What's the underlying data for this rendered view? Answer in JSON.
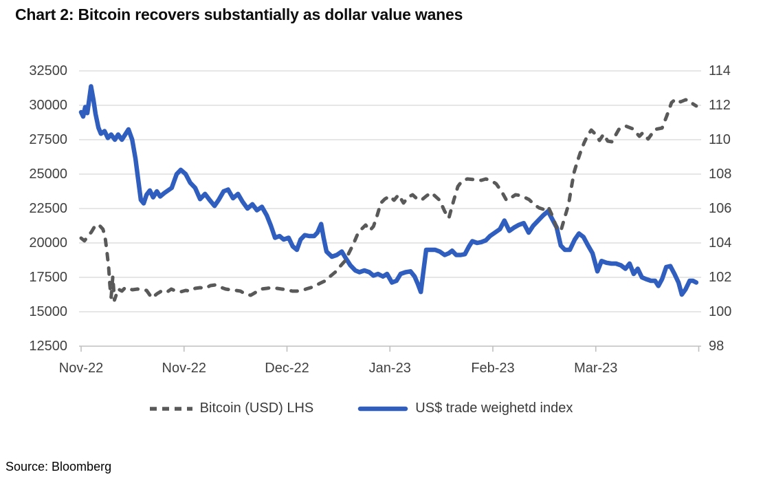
{
  "title": "Chart 2: Bitcoin recovers substantially as dollar value wanes",
  "source": "Source: Bloomberg",
  "colors": {
    "bitcoin_line": "#595959",
    "usd_index_line": "#2F5EBF",
    "gridline": "#D6D6D6",
    "axis_line": "#BFBFBF",
    "tick_label": "#404040",
    "background": "#FFFFFF"
  },
  "chart_data": {
    "type": "line",
    "title": "Chart 2: Bitcoin recovers substantially as dollar value wanes",
    "grid": "horizontal",
    "legend_position": "bottom-center",
    "x_axis": {
      "start_date": "2022-11-01",
      "unit": "days since start date",
      "tick_days": [
        0,
        25,
        50,
        75,
        100,
        125,
        150
      ],
      "tick_labels": [
        "Nov-22",
        "Nov-22",
        "Dec-22",
        "Jan-23",
        "Feb-23",
        "Mar-23",
        ""
      ]
    },
    "left_axis": {
      "series": "Bitcoin (USD) LHS",
      "min": 12500,
      "max": 32500,
      "step": 2500,
      "ticks": [
        32500,
        30000,
        27500,
        25000,
        22500,
        20000,
        17500,
        15000,
        12500
      ]
    },
    "right_axis": {
      "series": "US$ trade weighetd index",
      "min": 98,
      "max": 114,
      "step": 2,
      "ticks": [
        114,
        112,
        110,
        108,
        106,
        104,
        102,
        100,
        98
      ]
    },
    "series": [
      {
        "name": "US$ trade weighetd index",
        "axis": "right",
        "style": "solid",
        "color": "#2F5EBF",
        "points": [
          [
            0,
            111.6
          ],
          [
            0.5,
            111.35
          ],
          [
            1,
            111.9
          ],
          [
            1.5,
            111.55
          ],
          [
            2,
            112.4
          ],
          [
            2.4,
            113.1
          ],
          [
            3,
            112.3
          ],
          [
            3.5,
            111.5
          ],
          [
            4.2,
            110.7
          ],
          [
            4.8,
            110.35
          ],
          [
            5.7,
            110.5
          ],
          [
            6.5,
            110.1
          ],
          [
            7.3,
            110.3
          ],
          [
            8.2,
            110.0
          ],
          [
            9,
            110.3
          ],
          [
            9.9,
            110.0
          ],
          [
            10.7,
            110.3
          ],
          [
            11.5,
            110.6
          ],
          [
            12.4,
            110.0
          ],
          [
            13.2,
            108.9
          ],
          [
            13.9,
            107.6
          ],
          [
            14.5,
            106.5
          ],
          [
            15.2,
            106.3
          ],
          [
            15.9,
            106.8
          ],
          [
            16.7,
            107.05
          ],
          [
            17.5,
            106.65
          ],
          [
            18.4,
            107.0
          ],
          [
            19.2,
            106.7
          ],
          [
            20.2,
            106.9
          ],
          [
            22,
            107.2
          ],
          [
            23.2,
            108.0
          ],
          [
            24.2,
            108.25
          ],
          [
            25.4,
            108.0
          ],
          [
            26.5,
            107.5
          ],
          [
            27.7,
            107.2
          ],
          [
            28.9,
            106.55
          ],
          [
            30.1,
            106.85
          ],
          [
            31.2,
            106.5
          ],
          [
            32.4,
            106.15
          ],
          [
            33.4,
            106.5
          ],
          [
            34.6,
            107.0
          ],
          [
            35.7,
            107.1
          ],
          [
            36.9,
            106.6
          ],
          [
            38.1,
            106.85
          ],
          [
            39.2,
            106.4
          ],
          [
            40.4,
            106.0
          ],
          [
            41.6,
            106.25
          ],
          [
            42.7,
            105.9
          ],
          [
            43.9,
            106.1
          ],
          [
            45.1,
            105.6
          ],
          [
            46.1,
            105.0
          ],
          [
            47.1,
            104.3
          ],
          [
            48.2,
            104.4
          ],
          [
            49.2,
            104.2
          ],
          [
            50.4,
            104.3
          ],
          [
            51.4,
            103.8
          ],
          [
            52.4,
            103.6
          ],
          [
            53.3,
            104.2
          ],
          [
            54.3,
            104.45
          ],
          [
            55.4,
            104.4
          ],
          [
            56.6,
            104.4
          ],
          [
            57.4,
            104.6
          ],
          [
            58.3,
            105.1
          ],
          [
            58.9,
            104.3
          ],
          [
            59.6,
            103.5
          ],
          [
            60.9,
            103.2
          ],
          [
            62.1,
            103.3
          ],
          [
            63.3,
            103.5
          ],
          [
            64.3,
            103.1
          ],
          [
            65.4,
            102.7
          ],
          [
            66.6,
            102.4
          ],
          [
            67.6,
            102.3
          ],
          [
            68.8,
            102.4
          ],
          [
            70,
            102.3
          ],
          [
            71,
            102.1
          ],
          [
            72.1,
            102.2
          ],
          [
            73.3,
            102.05
          ],
          [
            74.3,
            102.2
          ],
          [
            75.5,
            101.7
          ],
          [
            76.6,
            101.8
          ],
          [
            77.6,
            102.2
          ],
          [
            78.8,
            102.3
          ],
          [
            80,
            102.35
          ],
          [
            81,
            102.05
          ],
          [
            81.8,
            101.6
          ],
          [
            82.5,
            101.15
          ],
          [
            83.1,
            102.3
          ],
          [
            83.8,
            103.6
          ],
          [
            85,
            103.6
          ],
          [
            86,
            103.6
          ],
          [
            87.1,
            103.5
          ],
          [
            88.3,
            103.3
          ],
          [
            89.3,
            103.4
          ],
          [
            90.1,
            103.55
          ],
          [
            91.1,
            103.3
          ],
          [
            92.2,
            103.3
          ],
          [
            93.2,
            103.35
          ],
          [
            94.2,
            103.8
          ],
          [
            95,
            104.1
          ],
          [
            96.2,
            104.0
          ],
          [
            97.2,
            104.05
          ],
          [
            98.3,
            104.15
          ],
          [
            99.3,
            104.4
          ],
          [
            100.5,
            104.6
          ],
          [
            101.7,
            104.8
          ],
          [
            102.8,
            105.3
          ],
          [
            104,
            104.7
          ],
          [
            105.2,
            104.9
          ],
          [
            106.3,
            105.05
          ],
          [
            107.5,
            105.15
          ],
          [
            108.7,
            104.6
          ],
          [
            109.8,
            105.0
          ],
          [
            111,
            105.3
          ],
          [
            112.2,
            105.6
          ],
          [
            113.4,
            105.85
          ],
          [
            114.5,
            105.35
          ],
          [
            115.5,
            104.9
          ],
          [
            116.5,
            103.85
          ],
          [
            117.5,
            103.6
          ],
          [
            118.7,
            103.6
          ],
          [
            119.9,
            104.2
          ],
          [
            120.9,
            104.55
          ],
          [
            122,
            104.35
          ],
          [
            123,
            103.9
          ],
          [
            124.2,
            103.4
          ],
          [
            125.4,
            102.35
          ],
          [
            126.4,
            102.95
          ],
          [
            127.6,
            102.85
          ],
          [
            128.8,
            102.8
          ],
          [
            129.9,
            102.8
          ],
          [
            131.1,
            102.7
          ],
          [
            132.2,
            102.5
          ],
          [
            133.2,
            102.8
          ],
          [
            134.2,
            102.2
          ],
          [
            135.2,
            102.5
          ],
          [
            136.2,
            102.0
          ],
          [
            137.2,
            101.9
          ],
          [
            138.4,
            101.8
          ],
          [
            139.4,
            101.8
          ],
          [
            140.2,
            101.5
          ],
          [
            141.1,
            101.9
          ],
          [
            142.1,
            102.6
          ],
          [
            143.1,
            102.65
          ],
          [
            144.1,
            102.2
          ],
          [
            145.1,
            101.7
          ],
          [
            145.9,
            101.0
          ],
          [
            146.8,
            101.3
          ],
          [
            147.8,
            101.8
          ],
          [
            148.6,
            101.8
          ],
          [
            149.4,
            101.7
          ]
        ]
      },
      {
        "name": "Bitcoin (USD) LHS",
        "axis": "left",
        "style": "dashed",
        "color": "#595959",
        "points": [
          [
            0,
            20350
          ],
          [
            0.8,
            20150
          ],
          [
            1.7,
            20500
          ],
          [
            2.5,
            20800
          ],
          [
            3.3,
            21200
          ],
          [
            4.2,
            21350
          ],
          [
            5.3,
            21000
          ],
          [
            5.8,
            20500
          ],
          [
            6.3,
            19300
          ],
          [
            6.7,
            18200
          ],
          [
            7,
            16900
          ],
          [
            7.3,
            16050
          ],
          [
            7.7,
            17550
          ],
          [
            8.1,
            15850
          ],
          [
            8.5,
            16200
          ],
          [
            9,
            16650
          ],
          [
            9.9,
            16500
          ],
          [
            10.7,
            16750
          ],
          [
            11.5,
            16650
          ],
          [
            12.5,
            16600
          ],
          [
            13.7,
            16650
          ],
          [
            14.9,
            16600
          ],
          [
            15.9,
            16550
          ],
          [
            17.2,
            16000
          ],
          [
            18.4,
            16300
          ],
          [
            19.5,
            16500
          ],
          [
            20.7,
            16400
          ],
          [
            21.9,
            16650
          ],
          [
            23,
            16500
          ],
          [
            24.2,
            16450
          ],
          [
            25.4,
            16550
          ],
          [
            26.5,
            16500
          ],
          [
            27.7,
            16700
          ],
          [
            28.9,
            16750
          ],
          [
            30.1,
            16700
          ],
          [
            31.4,
            16900
          ],
          [
            32.6,
            16950
          ],
          [
            33.7,
            16800
          ],
          [
            35.1,
            16650
          ],
          [
            36.2,
            16600
          ],
          [
            37.6,
            16550
          ],
          [
            38.7,
            16500
          ],
          [
            40.1,
            16250
          ],
          [
            41.2,
            16200
          ],
          [
            42.6,
            16450
          ],
          [
            43.7,
            16650
          ],
          [
            45.1,
            16700
          ],
          [
            46.2,
            16750
          ],
          [
            47.6,
            16700
          ],
          [
            48.7,
            16650
          ],
          [
            49.9,
            16600
          ],
          [
            51.3,
            16500
          ],
          [
            52.4,
            16500
          ],
          [
            53.8,
            16550
          ],
          [
            54.6,
            16650
          ],
          [
            56.3,
            16800
          ],
          [
            57.9,
            17050
          ],
          [
            59.3,
            17250
          ],
          [
            60.6,
            17600
          ],
          [
            61.8,
            17900
          ],
          [
            62.9,
            18300
          ],
          [
            64.1,
            18700
          ],
          [
            65.1,
            19300
          ],
          [
            66.1,
            19900
          ],
          [
            67.1,
            20600
          ],
          [
            68.1,
            21000
          ],
          [
            69.1,
            21300
          ],
          [
            70.1,
            20900
          ],
          [
            71,
            21200
          ],
          [
            71.9,
            22000
          ],
          [
            72.8,
            22900
          ],
          [
            73.8,
            23200
          ],
          [
            75,
            23400
          ],
          [
            76,
            23100
          ],
          [
            77.1,
            23500
          ],
          [
            78.3,
            22900
          ],
          [
            79.3,
            23300
          ],
          [
            80.5,
            23500
          ],
          [
            81.6,
            23200
          ],
          [
            82.6,
            23100
          ],
          [
            83.8,
            23400
          ],
          [
            85,
            23650
          ],
          [
            86,
            23400
          ],
          [
            87.1,
            23100
          ],
          [
            88.3,
            22300
          ],
          [
            89.3,
            21800
          ],
          [
            90.5,
            23100
          ],
          [
            91.5,
            24100
          ],
          [
            92.5,
            24500
          ],
          [
            93.8,
            24650
          ],
          [
            95.5,
            24600
          ],
          [
            97.2,
            24550
          ],
          [
            98.3,
            24650
          ],
          [
            99.7,
            24500
          ],
          [
            100.8,
            24300
          ],
          [
            102.2,
            23700
          ],
          [
            103.3,
            23100
          ],
          [
            104.5,
            23300
          ],
          [
            105.5,
            23500
          ],
          [
            106.7,
            23450
          ],
          [
            107.8,
            23300
          ],
          [
            108.8,
            23150
          ],
          [
            110,
            22800
          ],
          [
            111.2,
            22550
          ],
          [
            112.2,
            22450
          ],
          [
            113.4,
            22650
          ],
          [
            114.4,
            22000
          ],
          [
            115.5,
            21100
          ],
          [
            116.5,
            20850
          ],
          [
            117.5,
            21900
          ],
          [
            118.4,
            22800
          ],
          [
            119,
            23900
          ],
          [
            119.7,
            25100
          ],
          [
            120.5,
            25900
          ],
          [
            121.4,
            26700
          ],
          [
            122.2,
            27300
          ],
          [
            123,
            27800
          ],
          [
            123.9,
            28200
          ],
          [
            124.9,
            27900
          ],
          [
            125.9,
            27450
          ],
          [
            126.9,
            27900
          ],
          [
            127.9,
            27400
          ],
          [
            128.9,
            27350
          ],
          [
            130.6,
            28250
          ],
          [
            132.2,
            28500
          ],
          [
            133.9,
            28300
          ],
          [
            135.6,
            27750
          ],
          [
            136.4,
            28000
          ],
          [
            137.7,
            27550
          ],
          [
            139.4,
            28250
          ],
          [
            141.1,
            28350
          ],
          [
            142.2,
            29200
          ],
          [
            143.4,
            30200
          ],
          [
            144.4,
            30450
          ],
          [
            145.6,
            30250
          ],
          [
            146.8,
            30400
          ],
          [
            147.8,
            30350
          ],
          [
            148.6,
            30100
          ],
          [
            149.4,
            29950
          ]
        ]
      }
    ]
  },
  "legend": {
    "items": [
      {
        "label": "Bitcoin (USD) LHS"
      },
      {
        "label": "US$ trade weighetd index"
      }
    ]
  }
}
